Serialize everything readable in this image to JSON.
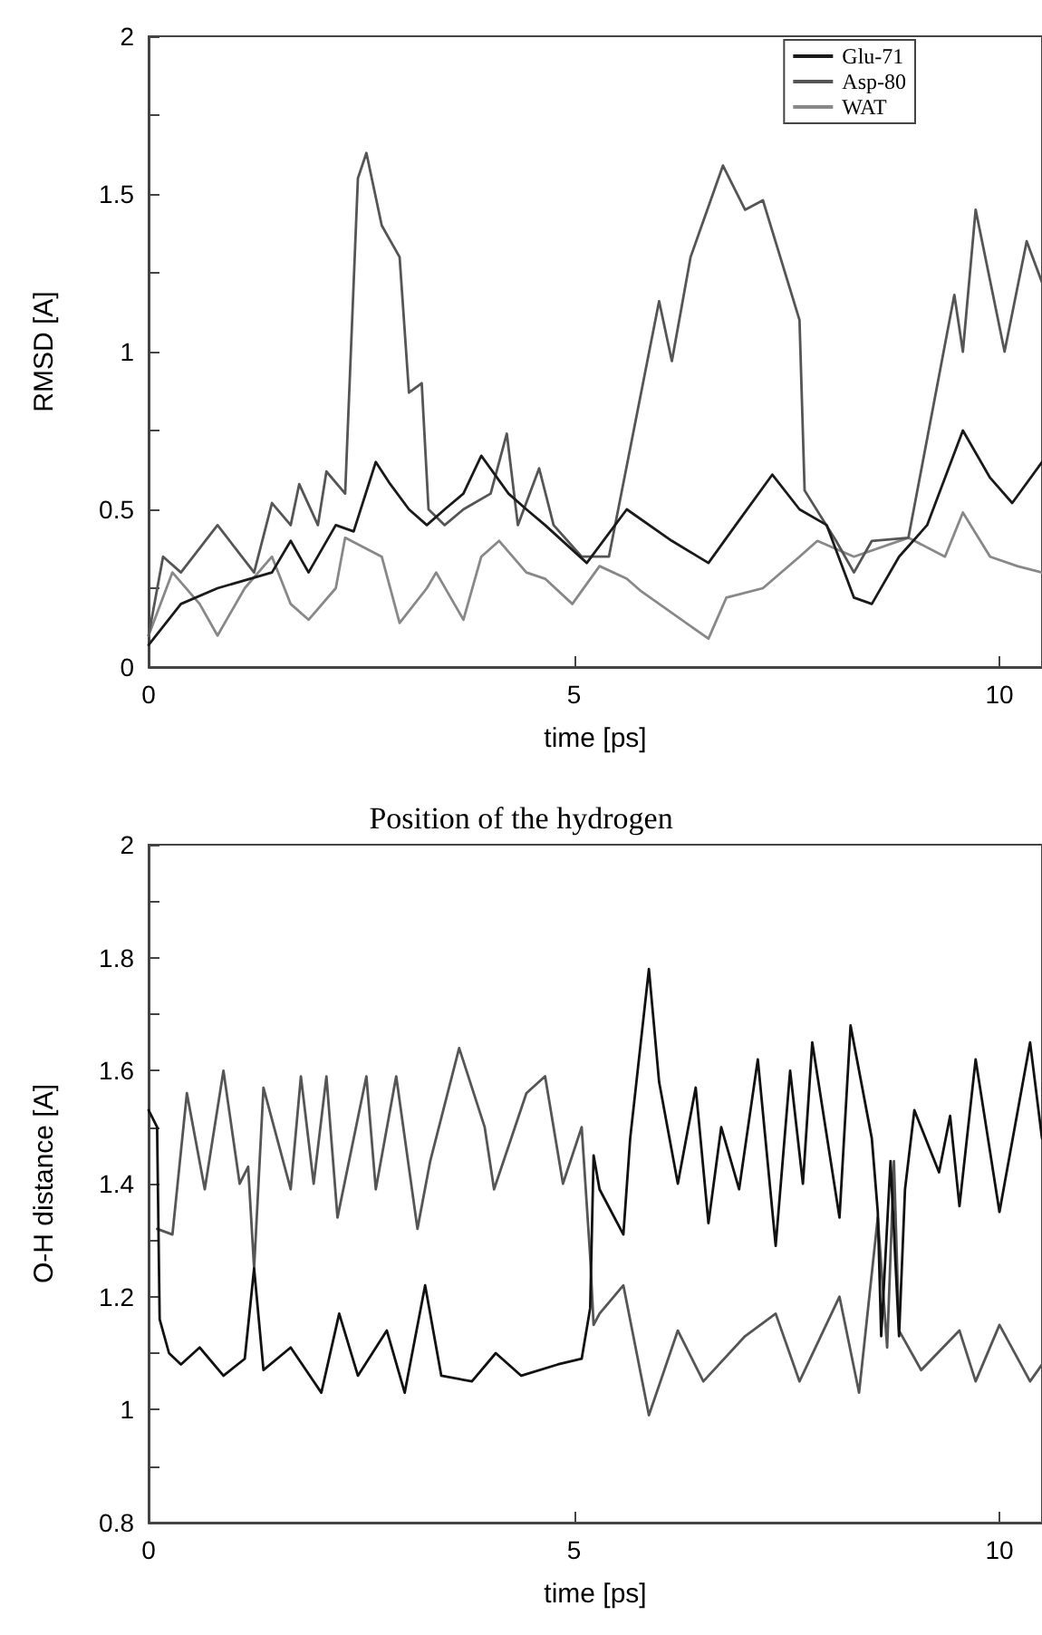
{
  "chart_data": [
    {
      "type": "line",
      "xlabel": "time [ps]",
      "ylabel": "RMSD [A]",
      "xlim": [
        0,
        10.5
      ],
      "xticks": [
        0,
        5,
        10
      ],
      "ylim": [
        0,
        2
      ],
      "yticks": [
        0,
        {
          "value": 0.25,
          "label": null
        },
        0.5,
        {
          "value": 0.75,
          "label": null
        },
        1,
        {
          "value": 1.25,
          "label": null
        },
        1.5,
        {
          "value": 1.75,
          "label": null
        },
        2
      ],
      "legend": "top right",
      "grid": false,
      "marker": "none",
      "line_style": "solid",
      "series": [
        {
          "name": "Glu-71",
          "color": "#1a1a1a",
          "x": [
            0,
            0.38,
            0.81,
            1.45,
            1.67,
            1.88,
            2.2,
            2.41,
            2.67,
            2.84,
            3.06,
            3.27,
            3.48,
            3.7,
            3.91,
            4.23,
            4.44,
            4.66,
            5.15,
            5.62,
            6.15,
            6.58,
            6.9,
            7.33,
            7.65,
            7.97,
            8.29,
            8.5,
            8.82,
            9.15,
            9.57,
            9.89,
            10.15,
            10.5
          ],
          "values": [
            0.07,
            0.2,
            0.25,
            0.3,
            0.4,
            0.3,
            0.45,
            0.43,
            0.65,
            0.58,
            0.5,
            0.45,
            0.5,
            0.55,
            0.67,
            0.55,
            0.5,
            0.45,
            0.33,
            0.5,
            0.4,
            0.33,
            0.45,
            0.61,
            0.5,
            0.45,
            0.22,
            0.2,
            0.35,
            0.45,
            0.75,
            0.6,
            0.52,
            0.65
          ]
        },
        {
          "name": "Asp-80",
          "color": "#555555",
          "x": [
            0,
            0.17,
            0.38,
            0.81,
            1.24,
            1.45,
            1.67,
            1.77,
            1.99,
            2.09,
            2.31,
            2.46,
            2.56,
            2.74,
            2.95,
            3.06,
            3.21,
            3.29,
            3.48,
            3.7,
            4.02,
            4.21,
            4.34,
            4.59,
            4.76,
            5.09,
            5.41,
            6.0,
            6.15,
            6.37,
            6.75,
            7.01,
            7.22,
            7.65,
            7.71,
            8.08,
            8.29,
            8.5,
            8.93,
            9.47,
            9.57,
            9.72,
            10.06,
            10.32,
            10.5
          ],
          "values": [
            0.1,
            0.35,
            0.3,
            0.45,
            0.3,
            0.52,
            0.45,
            0.58,
            0.45,
            0.62,
            0.55,
            1.55,
            1.63,
            1.4,
            1.3,
            0.87,
            0.9,
            0.5,
            0.45,
            0.5,
            0.55,
            0.74,
            0.45,
            0.63,
            0.45,
            0.35,
            0.35,
            1.16,
            0.97,
            1.3,
            1.59,
            1.45,
            1.48,
            1.1,
            0.56,
            0.4,
            0.3,
            0.4,
            0.41,
            1.18,
            1.0,
            1.45,
            1.0,
            1.35,
            1.22
          ]
        },
        {
          "name": "WAT",
          "color": "#888888",
          "x": [
            0,
            0.28,
            0.6,
            0.81,
            1.13,
            1.45,
            1.67,
            1.88,
            2.2,
            2.31,
            2.74,
            2.95,
            3.27,
            3.38,
            3.7,
            3.91,
            4.12,
            4.44,
            4.66,
            4.98,
            5.3,
            5.62,
            5.79,
            6.58,
            6.79,
            7.22,
            7.65,
            7.86,
            8.29,
            8.93,
            9.36,
            9.57,
            9.89,
            10.21,
            10.5
          ],
          "values": [
            0.1,
            0.3,
            0.2,
            0.1,
            0.25,
            0.35,
            0.2,
            0.15,
            0.25,
            0.41,
            0.35,
            0.14,
            0.25,
            0.3,
            0.15,
            0.35,
            0.4,
            0.3,
            0.28,
            0.2,
            0.32,
            0.28,
            0.24,
            0.09,
            0.22,
            0.25,
            0.35,
            0.4,
            0.35,
            0.41,
            0.35,
            0.49,
            0.35,
            0.32,
            0.3
          ]
        }
      ]
    },
    {
      "type": "line",
      "title": "Position of the hydrogen",
      "xlabel": "time [ps]",
      "ylabel": "O-H distance [A]",
      "xlim": [
        0,
        10.5
      ],
      "xticks": [
        0,
        5,
        10
      ],
      "ylim": [
        0.8,
        2
      ],
      "yticks": [
        0.8,
        {
          "value": 0.9,
          "label": null
        },
        1,
        {
          "value": 1.1,
          "label": null
        },
        1.2,
        {
          "value": 1.3,
          "label": null
        },
        1.4,
        {
          "value": 1.5,
          "label": null
        },
        1.6,
        {
          "value": 1.7,
          "label": null
        },
        1.8,
        {
          "value": 1.9,
          "label": null
        },
        2
      ],
      "legend": false,
      "grid": false,
      "marker": "none",
      "line_style": "solid",
      "series": [
        {
          "color": "#111111",
          "x": [
            0,
            0.1,
            0.13,
            0.24,
            0.38,
            0.6,
            0.88,
            1.13,
            1.24,
            1.35,
            1.67,
            2.03,
            2.24,
            2.46,
            2.8,
            3.01,
            3.25,
            3.44,
            3.8,
            4.08,
            4.38,
            4.81,
            5.09,
            5.19,
            5.23,
            5.3,
            5.58,
            5.66,
            5.88,
            6.0,
            6.22,
            6.43,
            6.58,
            6.73,
            6.94,
            7.16,
            7.37,
            7.54,
            7.69,
            7.8,
            8.12,
            8.25,
            8.5,
            8.57,
            8.61,
            8.72,
            8.82,
            8.89,
            9.0,
            9.29,
            9.42,
            9.53,
            9.72,
            10.0,
            10.36,
            10.5
          ],
          "values": [
            1.53,
            1.5,
            1.16,
            1.1,
            1.08,
            1.11,
            1.06,
            1.09,
            1.25,
            1.07,
            1.11,
            1.03,
            1.17,
            1.06,
            1.14,
            1.03,
            1.22,
            1.06,
            1.05,
            1.1,
            1.06,
            1.08,
            1.09,
            1.18,
            1.45,
            1.39,
            1.31,
            1.48,
            1.78,
            1.58,
            1.4,
            1.57,
            1.33,
            1.5,
            1.39,
            1.62,
            1.29,
            1.6,
            1.4,
            1.65,
            1.34,
            1.68,
            1.48,
            1.35,
            1.13,
            1.44,
            1.13,
            1.39,
            1.53,
            1.42,
            1.52,
            1.36,
            1.62,
            1.35,
            1.65,
            1.48
          ]
        },
        {
          "color": "#555555",
          "x": [
            0.1,
            0.28,
            0.45,
            0.66,
            0.88,
            1.07,
            1.17,
            1.24,
            1.35,
            1.67,
            1.79,
            1.94,
            2.09,
            2.22,
            2.56,
            2.67,
            2.91,
            3.16,
            3.31,
            3.65,
            3.95,
            4.06,
            4.44,
            4.66,
            4.87,
            5.09,
            5.19,
            5.23,
            5.3,
            5.58,
            5.88,
            6.22,
            6.52,
            7.01,
            7.37,
            7.65,
            8.12,
            8.35,
            8.57,
            8.68,
            8.76,
            8.82,
            9.08,
            9.53,
            9.72,
            10.0,
            10.36,
            10.5
          ],
          "values": [
            1.32,
            1.31,
            1.56,
            1.39,
            1.6,
            1.4,
            1.43,
            1.25,
            1.57,
            1.39,
            1.59,
            1.4,
            1.59,
            1.34,
            1.59,
            1.39,
            1.59,
            1.32,
            1.44,
            1.64,
            1.5,
            1.39,
            1.56,
            1.59,
            1.4,
            1.5,
            1.27,
            1.15,
            1.17,
            1.22,
            0.99,
            1.14,
            1.05,
            1.13,
            1.17,
            1.05,
            1.2,
            1.03,
            1.34,
            1.11,
            1.44,
            1.14,
            1.07,
            1.14,
            1.05,
            1.15,
            1.05,
            1.08
          ]
        }
      ]
    }
  ]
}
